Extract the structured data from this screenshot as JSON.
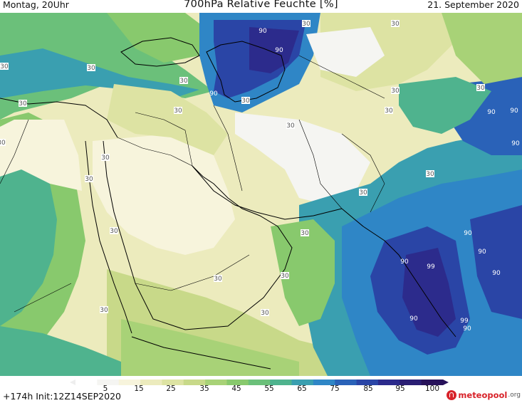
{
  "header": {
    "left": "Montag, 20Uhr",
    "title": "700hPa Relative Feuchte [%]",
    "right": "21. September 2020"
  },
  "colorbar": {
    "ticks": [
      "5",
      "15",
      "25",
      "35",
      "45",
      "55",
      "65",
      "75",
      "85",
      "95",
      "100"
    ],
    "colors": [
      "#ffffff",
      "#f5f5f2",
      "#f7f4dc",
      "#ecebbd",
      "#dde3a3",
      "#c8d989",
      "#a8d277",
      "#88c96d",
      "#6bc07a",
      "#4fb38e",
      "#3a9fb0",
      "#2f86c6",
      "#2a62b8",
      "#2a45a6",
      "#2c2b8c",
      "#2a1e73",
      "#27125a"
    ]
  },
  "map": {
    "contour_labels": [
      {
        "text": "90",
        "color": "#ffffff"
      },
      {
        "text": "90",
        "color": "#ffffff"
      },
      {
        "text": "90",
        "color": "#ffffff"
      },
      {
        "text": "90",
        "color": "#ffffff"
      },
      {
        "text": "90",
        "color": "#ffffff"
      },
      {
        "text": "90",
        "color": "#ffffff"
      },
      {
        "text": "90",
        "color": "#ffffff"
      },
      {
        "text": "90",
        "color": "#ffffff"
      },
      {
        "text": "90",
        "color": "#ffffff"
      },
      {
        "text": "90",
        "color": "#ffffff"
      },
      {
        "text": "90",
        "color": "#ffffff"
      },
      {
        "text": "99",
        "color": "#ffffff"
      },
      {
        "text": "99",
        "color": "#ffffff"
      },
      {
        "text": "90",
        "color": "#ffffff"
      },
      {
        "text": "30",
        "color": "#ffffff"
      },
      {
        "text": "30",
        "color": "#ffffff"
      },
      {
        "text": "30",
        "color": "#ffffff"
      },
      {
        "text": "30",
        "color": "#ffffff"
      },
      {
        "text": "30",
        "color": "#ffffff"
      },
      {
        "text": "30",
        "color": "#ffffff"
      },
      {
        "text": "30",
        "color": "#ffffff"
      },
      {
        "text": "30",
        "color": "#ffffff"
      },
      {
        "text": "30",
        "color": "#ffffff"
      },
      {
        "text": "30",
        "color": "#ffffff"
      },
      {
        "text": "30",
        "color": "#ffffff"
      },
      {
        "text": "30",
        "color": "#ffffff"
      },
      {
        "text": "30",
        "color": "#ffffff"
      },
      {
        "text": "30",
        "color": "#ffffff"
      },
      {
        "text": "30",
        "color": "#ffffff"
      },
      {
        "text": "30",
        "color": "#ffffff"
      },
      {
        "text": "30",
        "color": "#ffffff"
      },
      {
        "text": "30",
        "color": "#ffffff"
      },
      {
        "text": "30",
        "color": "#ffffff"
      },
      {
        "text": "30",
        "color": "#ffffff"
      },
      {
        "text": "30",
        "color": "#ffffff"
      },
      {
        "text": "30",
        "color": "#ffffff"
      },
      {
        "text": "30",
        "color": "#ffffff"
      }
    ]
  },
  "footer": {
    "run": "+174h  Init:12Z14SEP2020",
    "brand_name": "meteopool",
    "brand_tld": ".org"
  }
}
